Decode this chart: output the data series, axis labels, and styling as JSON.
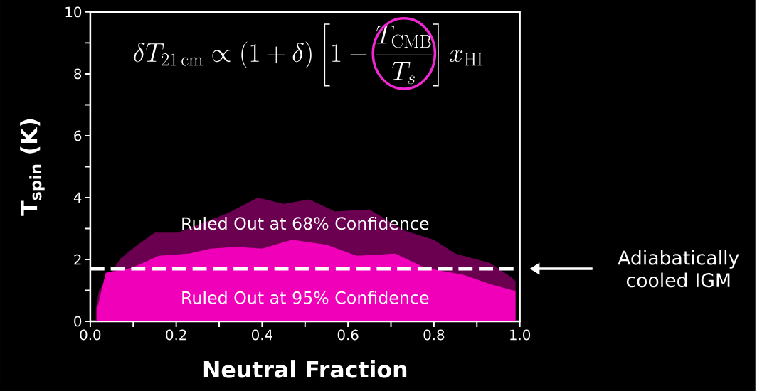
{
  "chart_data": {
    "type": "area",
    "title": "\\delta T_{21\\,\\mathrm{cm}} \\propto (1+\\delta)\\left[1-\\frac{T_{\\mathrm{CMB}}}{T_s}\\right] x_{\\mathrm{HI}}",
    "xlabel": "Neutral Fraction",
    "ylabel": "T$_{spin}$ (K)",
    "xlim": [
      0,
      1
    ],
    "ylim": [
      0,
      10
    ],
    "xticks": [
      {
        "value": 0,
        "label": "0.0"
      },
      {
        "value": 0.1,
        "label": null
      },
      0.2,
      {
        "value": 0.3,
        "label": null
      },
      0.4,
      {
        "value": 0.5,
        "label": null
      },
      0.6,
      {
        "value": 0.7,
        "label": null
      },
      0.8,
      {
        "value": 0.9,
        "label": null
      },
      {
        "value": 1,
        "label": "1.0"
      }
    ],
    "yticks": [
      0,
      {
        "value": 1,
        "label": null
      },
      2,
      {
        "value": 3,
        "label": null
      },
      4,
      {
        "value": 5,
        "label": null
      },
      6,
      {
        "value": 7,
        "label": null
      },
      8,
      {
        "value": 9,
        "label": null
      },
      10
    ],
    "series": [
      {
        "color": "#6b0050",
        "x": [
          0.013,
          0.02,
          0.07,
          0.11,
          0.15,
          0.205,
          0.26,
          0.32,
          0.39,
          0.45,
          0.51,
          0.57,
          0.65,
          0.73,
          0.8,
          0.85,
          0.93,
          0.98,
          0.99
        ],
        "values": [
          0.4,
          0.98,
          2.03,
          2.48,
          2.87,
          2.87,
          3.17,
          3.5,
          4.0,
          3.8,
          3.94,
          3.55,
          3.62,
          2.94,
          2.64,
          2.19,
          1.89,
          1.43,
          1.3
        ]
      },
      {
        "color": "#f000b8",
        "x": [
          0.015,
          0.036,
          0.097,
          0.16,
          0.23,
          0.28,
          0.34,
          0.4,
          0.47,
          0.55,
          0.62,
          0.71,
          0.78,
          0.87,
          0.93,
          0.99
        ],
        "values": [
          0.36,
          1.57,
          1.73,
          2.12,
          2.19,
          2.35,
          2.41,
          2.35,
          2.64,
          2.48,
          2.12,
          2.19,
          1.73,
          1.5,
          1.21,
          0.98
        ]
      }
    ],
    "ref_lines": [
      {
        "axis": "y",
        "value": 1.7,
        "label": "Adiabatically cooled IGM",
        "color": "#ffffff",
        "line_style": "dashed"
      }
    ],
    "annotations": [
      "Ruled Out at 68% Confidence",
      "Ruled Out at 95% Confidence"
    ]
  }
}
